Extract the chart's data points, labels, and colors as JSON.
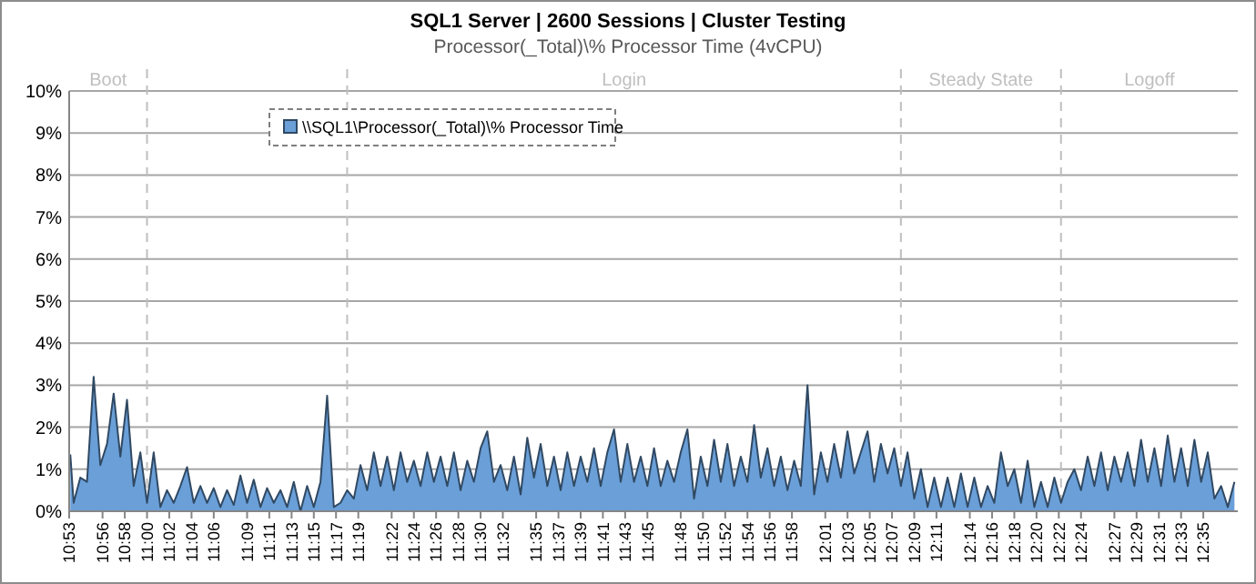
{
  "chart_data": {
    "type": "area",
    "title": "SQL1 Server | 2600 Sessions | Cluster Testing",
    "subtitle": "Processor(_Total)\\%  Processor Time (4vCPU)",
    "x": [
      10.885,
      10.89,
      10.9,
      10.91,
      10.92,
      10.93,
      10.94,
      10.95,
      10.96,
      10.97,
      10.98,
      10.99,
      11.0,
      11.01,
      11.02,
      11.03,
      11.04,
      11.05,
      11.06,
      11.07,
      11.08,
      11.09,
      11.1,
      11.11,
      11.12,
      11.13,
      11.14,
      11.15,
      11.16,
      11.17,
      11.18,
      11.19,
      11.2,
      11.21,
      11.22,
      11.23,
      11.24,
      11.25,
      11.26,
      11.27,
      11.28,
      11.29,
      11.3,
      11.31,
      11.32,
      11.33,
      11.34,
      11.35,
      11.36,
      11.37,
      11.38,
      11.39,
      11.4,
      11.41,
      11.42,
      11.43,
      11.44,
      11.45,
      11.46,
      11.47,
      11.48,
      11.49,
      11.5,
      11.51,
      11.52,
      11.53,
      11.54,
      11.55,
      11.56,
      11.57,
      11.58,
      11.59,
      11.6,
      11.61,
      11.62,
      11.63,
      11.64,
      11.65,
      11.66,
      11.67,
      11.68,
      11.69,
      11.7,
      11.71,
      11.72,
      11.73,
      11.74,
      11.75,
      11.76,
      11.77,
      11.78,
      11.79,
      11.8,
      11.81,
      11.82,
      11.83,
      11.84,
      11.85,
      11.86,
      11.87,
      11.88,
      11.89,
      11.9,
      11.91,
      11.92,
      11.93,
      11.94,
      11.95,
      11.96,
      11.97,
      11.98,
      11.99,
      12.0,
      12.01,
      12.02,
      12.03,
      12.04,
      12.05,
      12.06,
      12.07,
      12.08,
      12.09,
      12.1,
      12.11,
      12.12,
      12.13,
      12.14,
      12.15,
      12.16,
      12.17,
      12.18,
      12.19,
      12.2,
      12.21,
      12.22,
      12.23,
      12.24,
      12.25,
      12.26,
      12.27,
      12.28,
      12.29,
      12.3,
      12.31,
      12.32,
      12.33,
      12.34,
      12.35,
      12.36,
      12.37,
      12.38,
      12.39,
      12.4,
      12.41,
      12.42,
      12.43,
      12.44,
      12.45,
      12.46,
      12.47,
      12.48,
      12.49,
      12.5,
      12.51,
      12.52,
      12.53,
      12.54,
      12.55,
      12.56,
      12.57,
      12.58,
      12.59,
      12.6,
      12.61,
      12.62,
      12.63
    ],
    "series": [
      {
        "name": "\\\\SQL1\\Processor(_Total)\\% Processor Time",
        "color": "#6a9fd8",
        "values": [
          1.35,
          0.2,
          0.8,
          0.7,
          3.2,
          1.1,
          1.6,
          2.8,
          1.3,
          2.65,
          0.6,
          1.4,
          0.2,
          1.4,
          0.1,
          0.5,
          0.2,
          0.6,
          1.05,
          0.2,
          0.6,
          0.2,
          0.55,
          0.1,
          0.5,
          0.15,
          0.85,
          0.2,
          0.75,
          0.1,
          0.55,
          0.2,
          0.5,
          0.1,
          0.7,
          0.0,
          0.6,
          0.1,
          0.7,
          2.75,
          0.1,
          0.2,
          0.5,
          0.3,
          1.1,
          0.5,
          1.4,
          0.6,
          1.3,
          0.5,
          1.4,
          0.7,
          1.2,
          0.6,
          1.4,
          0.7,
          1.3,
          0.6,
          1.4,
          0.5,
          1.2,
          0.7,
          1.5,
          1.9,
          0.7,
          1.1,
          0.5,
          1.3,
          0.4,
          1.75,
          0.8,
          1.6,
          0.6,
          1.3,
          0.5,
          1.4,
          0.6,
          1.3,
          0.7,
          1.5,
          0.6,
          1.4,
          1.95,
          0.7,
          1.6,
          0.7,
          1.3,
          0.6,
          1.5,
          0.6,
          1.2,
          0.7,
          1.4,
          1.95,
          0.3,
          1.3,
          0.6,
          1.7,
          0.7,
          1.6,
          0.6,
          1.3,
          0.7,
          2.05,
          0.8,
          1.5,
          0.6,
          1.3,
          0.5,
          1.2,
          0.6,
          3.0,
          0.4,
          1.4,
          0.7,
          1.6,
          0.8,
          1.9,
          0.9,
          1.4,
          1.9,
          0.7,
          1.6,
          0.9,
          1.5,
          0.6,
          1.4,
          0.3,
          1.0,
          0.1,
          0.8,
          0.1,
          0.8,
          0.1,
          0.9,
          0.1,
          0.8,
          0.1,
          0.6,
          0.2,
          1.4,
          0.6,
          1.0,
          0.2,
          1.2,
          0.1,
          0.7,
          0.1,
          0.8,
          0.2,
          0.7,
          1.0,
          0.5,
          1.3,
          0.6,
          1.4,
          0.5,
          1.3,
          0.7,
          1.4,
          0.6,
          1.7,
          0.7,
          1.5,
          0.6,
          1.8,
          0.7,
          1.5,
          0.6,
          1.7,
          0.7,
          1.4,
          0.3,
          0.6,
          0.1,
          0.7
        ]
      }
    ],
    "xlim": [
      10.8833,
      12.635
    ],
    "xticks": [
      {
        "value": 10.8833,
        "label": "10:53"
      },
      {
        "value": 10.9333,
        "label": "10:56"
      },
      {
        "value": 10.9667,
        "label": "10:58"
      },
      {
        "value": 11.0,
        "label": "11:00"
      },
      {
        "value": 11.0333,
        "label": "11:02"
      },
      {
        "value": 11.0667,
        "label": "11:04"
      },
      {
        "value": 11.1,
        "label": "11:06"
      },
      {
        "value": 11.15,
        "label": "11:09"
      },
      {
        "value": 11.1833,
        "label": "11:11"
      },
      {
        "value": 11.2167,
        "label": "11:13"
      },
      {
        "value": 11.25,
        "label": "11:15"
      },
      {
        "value": 11.2833,
        "label": "11:17"
      },
      {
        "value": 11.3167,
        "label": "11:19"
      },
      {
        "value": 11.3667,
        "label": "11:22"
      },
      {
        "value": 11.4,
        "label": "11:24"
      },
      {
        "value": 11.4333,
        "label": "11:26"
      },
      {
        "value": 11.4667,
        "label": "11:28"
      },
      {
        "value": 11.5,
        "label": "11:30"
      },
      {
        "value": 11.5333,
        "label": "11:32"
      },
      {
        "value": 11.5833,
        "label": "11:35"
      },
      {
        "value": 11.6167,
        "label": "11:37"
      },
      {
        "value": 11.65,
        "label": "11:39"
      },
      {
        "value": 11.6833,
        "label": "11:41"
      },
      {
        "value": 11.7167,
        "label": "11:43"
      },
      {
        "value": 11.75,
        "label": "11:45"
      },
      {
        "value": 11.8,
        "label": "11:48"
      },
      {
        "value": 11.8333,
        "label": "11:50"
      },
      {
        "value": 11.8667,
        "label": "11:52"
      },
      {
        "value": 11.9,
        "label": "11:54"
      },
      {
        "value": 11.9333,
        "label": "11:56"
      },
      {
        "value": 11.9667,
        "label": "11:58"
      },
      {
        "value": 12.0167,
        "label": "12:01"
      },
      {
        "value": 12.05,
        "label": "12:03"
      },
      {
        "value": 12.0833,
        "label": "12:05"
      },
      {
        "value": 12.1167,
        "label": "12:07"
      },
      {
        "value": 12.15,
        "label": "12:09"
      },
      {
        "value": 12.1833,
        "label": "12:11"
      },
      {
        "value": 12.2333,
        "label": "12:14"
      },
      {
        "value": 12.2667,
        "label": "12:16"
      },
      {
        "value": 12.3,
        "label": "12:18"
      },
      {
        "value": 12.3333,
        "label": "12:20"
      },
      {
        "value": 12.3667,
        "label": "12:22"
      },
      {
        "value": 12.4,
        "label": "12:24"
      },
      {
        "value": 12.45,
        "label": "12:27"
      },
      {
        "value": 12.4833,
        "label": "12:29"
      },
      {
        "value": 12.5167,
        "label": "12:31"
      },
      {
        "value": 12.55,
        "label": "12:33"
      },
      {
        "value": 12.5833,
        "label": "12:35"
      }
    ],
    "ylim": [
      0,
      10
    ],
    "yticks": [
      {
        "value": 0,
        "label": "0%"
      },
      {
        "value": 1,
        "label": "1%"
      },
      {
        "value": 2,
        "label": "2%"
      },
      {
        "value": 3,
        "label": "3%"
      },
      {
        "value": 4,
        "label": "4%"
      },
      {
        "value": 5,
        "label": "5%"
      },
      {
        "value": 6,
        "label": "6%"
      },
      {
        "value": 7,
        "label": "7%"
      },
      {
        "value": 8,
        "label": "8%"
      },
      {
        "value": 9,
        "label": "9%"
      },
      {
        "value": 10,
        "label": "10%"
      }
    ],
    "ref_lines": [
      {
        "axis": "x",
        "value": 11.0,
        "line_style": "dashed"
      },
      {
        "axis": "x",
        "value": 11.3,
        "line_style": "dashed"
      },
      {
        "axis": "x",
        "value": 12.13,
        "line_style": "dashed"
      },
      {
        "axis": "x",
        "value": 12.37,
        "line_style": "dashed"
      }
    ],
    "annotations": [
      "Boot",
      "Login",
      "Steady State",
      "Logoff"
    ],
    "grid": "y",
    "legend": "top left"
  }
}
